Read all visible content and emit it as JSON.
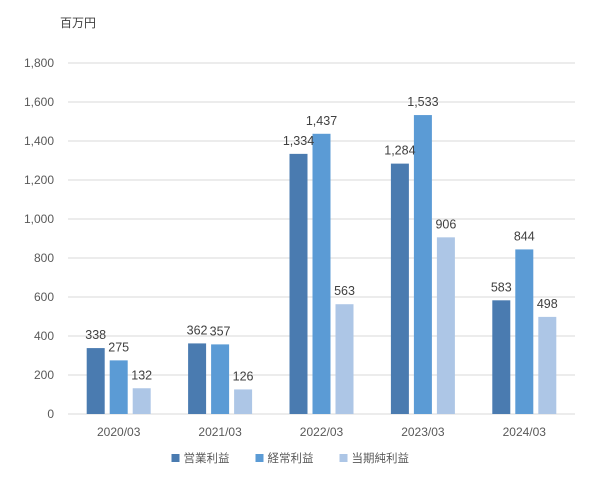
{
  "chart_data": {
    "type": "bar",
    "unit_label": "百万円",
    "categories": [
      "2020/03",
      "2021/03",
      "2022/03",
      "2023/03",
      "2024/03"
    ],
    "series": [
      {
        "name": "営業利益",
        "color": "#4a7bb0",
        "values": [
          338,
          362,
          1334,
          1284,
          583
        ],
        "labels": [
          "338",
          "362",
          "1,334",
          "1,284",
          "583"
        ]
      },
      {
        "name": "経常利益",
        "color": "#5b9bd5",
        "values": [
          275,
          357,
          1437,
          1533,
          844
        ],
        "labels": [
          "275",
          "357",
          "1,437",
          "1,533",
          "844"
        ]
      },
      {
        "name": "当期純利益",
        "color": "#adc6e6",
        "values": [
          132,
          126,
          563,
          906,
          498
        ],
        "labels": [
          "132",
          "126",
          "563",
          "906",
          "498"
        ]
      }
    ],
    "ylim": [
      0,
      1800
    ],
    "yticks": [
      0,
      200,
      400,
      600,
      800,
      1000,
      1200,
      1400,
      1600,
      1800
    ],
    "ytick_labels": [
      "0",
      "200",
      "400",
      "600",
      "800",
      "1,000",
      "1,200",
      "1,400",
      "1,600",
      "1,800"
    ],
    "grid": true,
    "legend_position": "bottom"
  }
}
